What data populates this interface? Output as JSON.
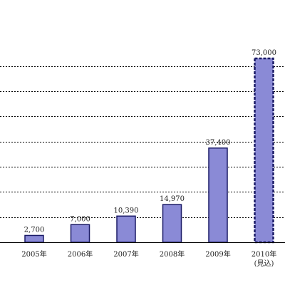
{
  "chart_data": {
    "type": "bar",
    "title": "",
    "xlabel": "",
    "ylabel": "",
    "categories": [
      "2005年",
      "2006年",
      "2007年",
      "2008年",
      "2009年",
      "2010年\n(見込)"
    ],
    "values": [
      2700,
      7000,
      10390,
      14970,
      37400,
      73000
    ],
    "value_labels": [
      "2,700",
      "7,000",
      "10,390",
      "14,970",
      "37,400",
      "73,000"
    ],
    "ylim": [
      0,
      80000
    ],
    "y_grid_step": 10000,
    "grid": true,
    "bar_color": "#8a8ad6",
    "bar_edge_color": "#1a1a66",
    "highlight_edge_style": "dashed"
  }
}
